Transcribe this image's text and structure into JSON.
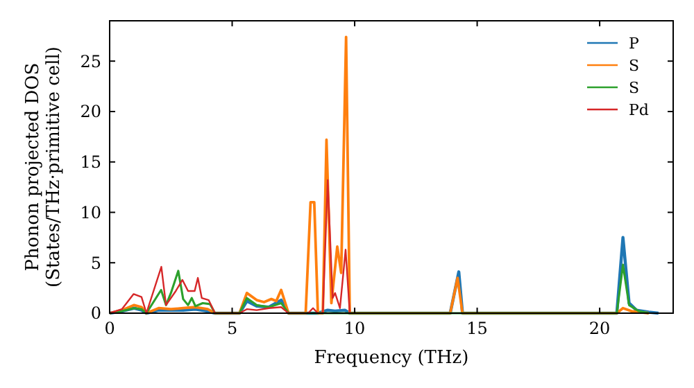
{
  "chart_data": {
    "type": "line",
    "xlabel": "Frequency (THz)",
    "ylabel": "Phonon projected DOS\n(States/THz·primitive cell)",
    "xlim": [
      0,
      23
    ],
    "ylim": [
      0,
      29
    ],
    "xticks": [
      0,
      5,
      10,
      15,
      20
    ],
    "yticks": [
      0,
      5,
      10,
      15,
      20,
      25
    ],
    "grid": false,
    "legend": "top right",
    "marker": "none",
    "line_style": "solid",
    "series": [
      {
        "name": "P",
        "color": "#1f77b4",
        "x": [
          0,
          0.5,
          1.0,
          1.3,
          1.5,
          2.0,
          2.5,
          3.0,
          3.5,
          4.0,
          4.3,
          5.3,
          5.6,
          6.0,
          6.5,
          7.0,
          7.3,
          8.5,
          8.9,
          9.2,
          9.6,
          9.8,
          13.9,
          14.25,
          14.4,
          20.7,
          20.95,
          21.2,
          21.5,
          22.0,
          22.4
        ],
        "values": [
          0,
          0.2,
          0.5,
          0.3,
          0,
          0.3,
          0.3,
          0.3,
          0.4,
          0.2,
          0,
          0,
          1.2,
          0.7,
          0.6,
          1.3,
          0,
          0,
          0.3,
          0.2,
          0.3,
          0,
          0,
          4.1,
          0,
          0,
          7.5,
          1.0,
          0.3,
          0.1,
          0
        ]
      },
      {
        "name": "S",
        "color": "#ff7f0e",
        "x": [
          0,
          0.5,
          1.0,
          1.3,
          1.5,
          2.0,
          2.5,
          3.0,
          3.5,
          4.0,
          4.3,
          5.3,
          5.6,
          6.0,
          6.3,
          6.6,
          6.8,
          7.0,
          7.3,
          8.0,
          8.2,
          8.35,
          8.5,
          8.7,
          8.85,
          9.05,
          9.29,
          9.45,
          9.65,
          9.8,
          13.9,
          14.2,
          14.4,
          20.7,
          20.95,
          21.3,
          22
        ],
        "values": [
          0,
          0.3,
          0.8,
          0.6,
          0,
          0.5,
          0.4,
          0.5,
          0.6,
          0.4,
          0,
          0,
          2.0,
          1.3,
          1.1,
          1.4,
          1.2,
          2.3,
          0,
          0,
          11.0,
          11.0,
          0,
          0,
          17.2,
          1.0,
          6.6,
          4.0,
          27.4,
          0,
          0,
          3.5,
          0,
          0,
          0.5,
          0.2,
          0
        ]
      },
      {
        "name": "S",
        "color": "#2ca02c",
        "x": [
          0,
          0.5,
          1.0,
          1.3,
          1.5,
          2.1,
          2.3,
          2.5,
          2.8,
          3.0,
          3.2,
          3.35,
          3.5,
          3.8,
          4.1,
          4.3,
          5.3,
          5.6,
          6.0,
          6.5,
          7.0,
          7.3,
          20.7,
          20.95,
          21.2,
          21.6,
          22.0
        ],
        "values": [
          0,
          0.2,
          0.5,
          0.4,
          0,
          2.3,
          0.8,
          2.0,
          4.2,
          1.4,
          0.8,
          1.5,
          0.7,
          1.0,
          0.9,
          0,
          0,
          1.5,
          0.8,
          0.6,
          1.0,
          0,
          0,
          4.8,
          0.8,
          0.2,
          0
        ]
      },
      {
        "name": "Pd",
        "color": "#d62728",
        "x": [
          0,
          0.5,
          0.98,
          1.3,
          1.5,
          2.11,
          2.3,
          2.7,
          2.97,
          3.2,
          3.47,
          3.6,
          3.76,
          4.04,
          4.3,
          5.3,
          5.6,
          6.0,
          6.5,
          7.0,
          7.3,
          8.1,
          8.3,
          8.5,
          8.7,
          8.9,
          9.1,
          9.2,
          9.4,
          9.63,
          9.8
        ],
        "values": [
          0,
          0.4,
          1.9,
          1.6,
          0,
          4.6,
          0.8,
          2.2,
          3.3,
          2.2,
          2.2,
          3.5,
          1.5,
          1.3,
          0,
          0,
          0.4,
          0.3,
          0.5,
          0.6,
          0,
          0,
          0.5,
          0,
          0,
          13.2,
          1.5,
          2.0,
          0.5,
          6.3,
          0
        ]
      }
    ]
  }
}
